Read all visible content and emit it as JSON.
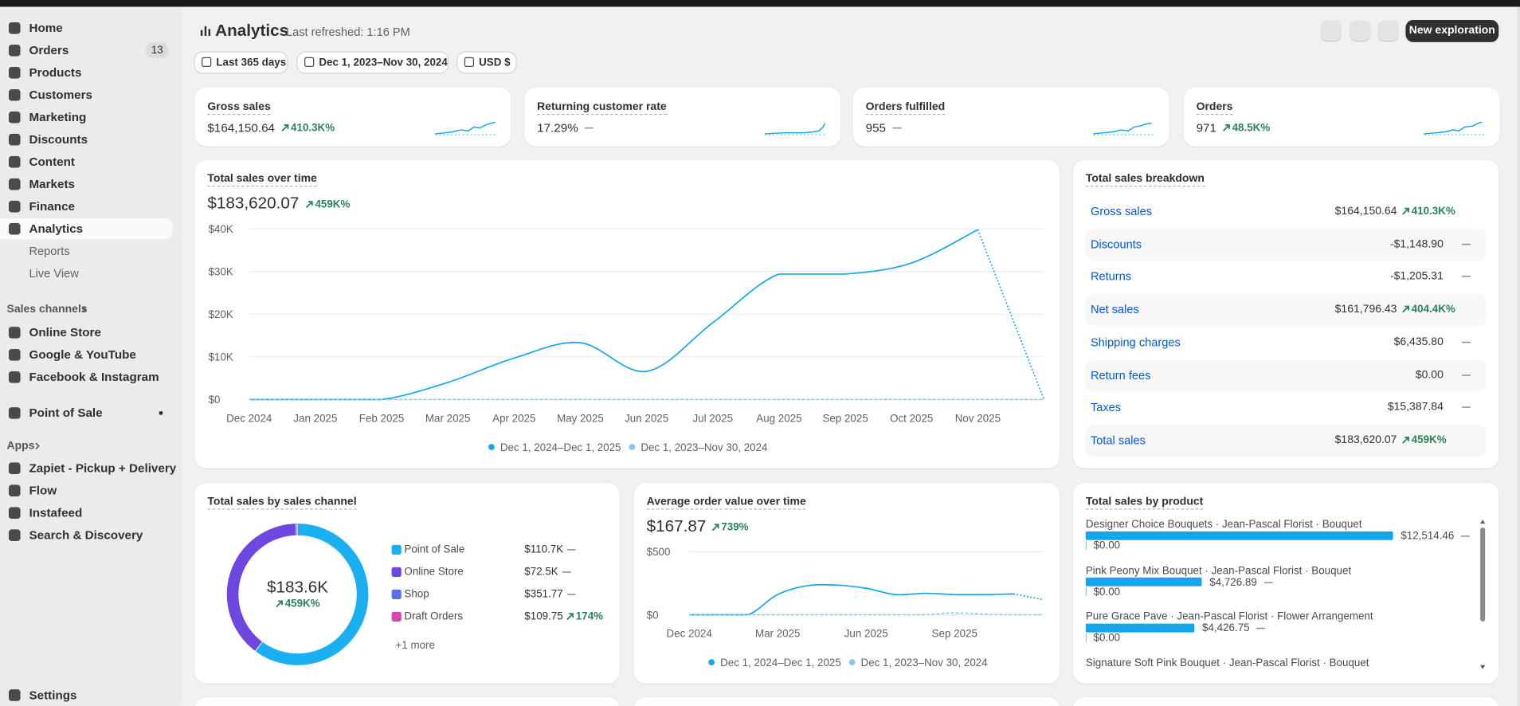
{
  "sidebar": {
    "nav": [
      {
        "label": "Home"
      },
      {
        "label": "Orders",
        "badge": "13"
      },
      {
        "label": "Products"
      },
      {
        "label": "Customers"
      },
      {
        "label": "Marketing"
      },
      {
        "label": "Discounts"
      },
      {
        "label": "Content"
      },
      {
        "label": "Markets"
      },
      {
        "label": "Finance"
      },
      {
        "label": "Analytics"
      }
    ],
    "analytics_sub": [
      "Reports",
      "Live View"
    ],
    "sales_channels": {
      "heading": "Sales channels",
      "items": [
        "Online Store",
        "Google & YouTube",
        "Facebook & Instagram"
      ]
    },
    "point_of_sale": "Point of Sale",
    "apps": {
      "heading": "Apps",
      "items": [
        "Zapiet - Pickup + Delivery",
        "Flow",
        "Instafeed",
        "Search & Discovery"
      ]
    },
    "settings": "Settings"
  },
  "header": {
    "title": "Analytics",
    "refreshed": "Last refreshed: 1:16 PM",
    "new_button": "New exploration"
  },
  "filters": [
    "Last 365 days",
    "Dec 1, 2023–Nov 30, 2024",
    "USD $"
  ],
  "kpis": [
    {
      "label": "Gross sales",
      "value": "$164,150.64",
      "change": "410.3K%"
    },
    {
      "label": "Returning customer rate",
      "value": "17.29%",
      "change": null
    },
    {
      "label": "Orders fulfilled",
      "value": "955",
      "change": null
    },
    {
      "label": "Orders",
      "value": "971",
      "change": "48.5K%"
    }
  ],
  "breakdown": {
    "title": "Total sales breakdown",
    "rows": [
      {
        "label": "Gross sales",
        "value": "$164,150.64",
        "change": "410.3K%"
      },
      {
        "label": "Discounts",
        "value": "-$1,148.90",
        "change": null
      },
      {
        "label": "Returns",
        "value": "-$1,205.31",
        "change": null
      },
      {
        "label": "Net sales",
        "value": "$161,796.43",
        "change": "404.4K%"
      },
      {
        "label": "Shipping charges",
        "value": "$6,435.80",
        "change": null
      },
      {
        "label": "Return fees",
        "value": "$0.00",
        "change": null
      },
      {
        "label": "Taxes",
        "value": "$15,387.84",
        "change": null
      },
      {
        "label": "Total sales",
        "value": "$183,620.07",
        "change": "459K%"
      }
    ]
  },
  "chart_data": [
    {
      "type": "line",
      "title": "Total sales over time",
      "total": "$183,620.07",
      "change": "459K%",
      "categories": [
        "Dec 2024",
        "Jan 2025",
        "Feb 2025",
        "Mar 2025",
        "Apr 2025",
        "May 2025",
        "Jun 2025",
        "Jul 2025",
        "Aug 2025",
        "Sep 2025",
        "Oct 2025",
        "Nov 2025",
        null
      ],
      "ylim": [
        0,
        40000
      ],
      "yticks": [
        {
          "value": 0,
          "label": "$0"
        },
        {
          "value": 10000,
          "label": "$10K"
        },
        {
          "value": 20000,
          "label": "$20K"
        },
        {
          "value": 30000,
          "label": "$30K"
        },
        {
          "value": 40000,
          "label": "$40K"
        }
      ],
      "grid": true,
      "series": [
        {
          "name": "Dec 1, 2024–Dec 1, 2025",
          "color": "#13a6ec",
          "values": [
            0,
            0,
            0,
            4000,
            9700,
            13300,
            6600,
            18000,
            29400,
            29400,
            32000,
            39800,
            0
          ]
        },
        {
          "name": "Dec 1, 2023–Nov 30, 2024",
          "color": "#7fcbf0",
          "values": [
            0,
            0,
            0,
            0,
            0,
            0,
            0,
            0,
            0,
            0,
            0,
            0,
            0
          ]
        }
      ]
    },
    {
      "type": "donut",
      "title": "Total sales by sales channel",
      "center_value": "$183.6K",
      "center_change": "459K%",
      "categories": [
        "Point of Sale",
        "Online Store",
        "Shop",
        "Draft Orders"
      ],
      "values": [
        110700,
        72500,
        351.77,
        109.75
      ],
      "value_labels": [
        "$110.7K",
        "$72.5K",
        "$351.77",
        "$109.75"
      ],
      "changes": [
        null,
        null,
        null,
        "174%"
      ],
      "colors": [
        "#1aaff0",
        "#6e46e0",
        "#5a6fe6",
        "#d945b2"
      ],
      "more": "+1 more"
    },
    {
      "type": "line",
      "title": "Average order value over time",
      "total": "$167.87",
      "change": "739%",
      "categories": [
        "Dec 2024",
        null,
        null,
        "Mar 2025",
        null,
        null,
        "Jun 2025",
        null,
        null,
        "Sep 2025",
        null,
        null,
        null
      ],
      "ylim": [
        0,
        500
      ],
      "yticks": [
        {
          "value": 0,
          "label": "$0"
        },
        {
          "value": 500,
          "label": "$500"
        }
      ],
      "grid": true,
      "series": [
        {
          "name": "Dec 1, 2024–Dec 1, 2025",
          "color": "#13a6ec",
          "values": [
            0,
            0,
            0,
            160,
            230,
            235,
            210,
            160,
            170,
            160,
            160,
            165,
            120
          ]
        },
        {
          "name": "Dec 1, 2023–Nov 30, 2024",
          "color": "#7fcbf0",
          "values": [
            0,
            0,
            0,
            0,
            0,
            0,
            0,
            0,
            0,
            15,
            5,
            0,
            0
          ]
        }
      ]
    },
    {
      "type": "bar",
      "orientation": "horizontal",
      "title": "Total sales by product",
      "color": "#13a6ec",
      "categories": [
        "Designer Choice Bouquets · Jean-Pascal Florist · Bouquet",
        "Pink Peony Mix Bouquet · Jean-Pascal Florist · Bouquet",
        "Pure Grace Pave · Jean-Pascal Florist · Flower Arrangement",
        "Signature Soft Pink Bouquet · Jean-Pascal Florist · Bouquet"
      ],
      "values": [
        12514.46,
        4726.89,
        4426.75,
        null
      ],
      "value_labels": [
        "$12,514.46",
        "$4,726.89",
        "$4,426.75",
        null
      ],
      "previous_values": [
        0,
        0,
        0,
        null
      ],
      "previous_labels": [
        "$0.00",
        "$0.00",
        "$0.00",
        null
      ]
    }
  ]
}
